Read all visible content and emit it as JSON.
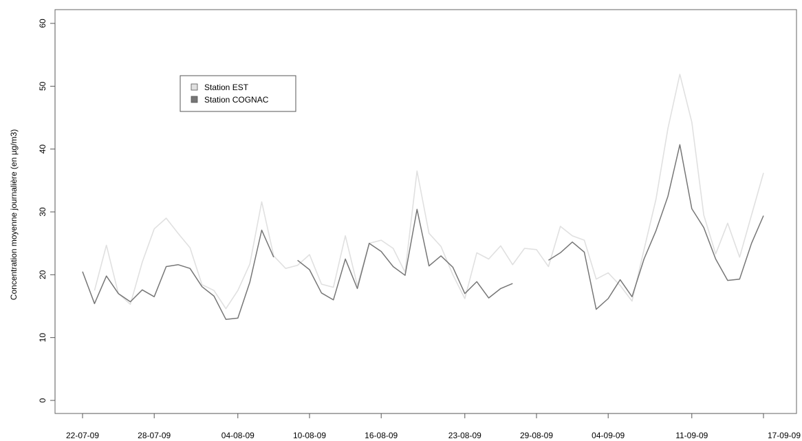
{
  "chart_data": {
    "type": "line",
    "ylabel": "Concentration moyenne journalière (en µg/m3)",
    "ylim": [
      0,
      60
    ],
    "y_ticks": [
      0,
      10,
      20,
      30,
      40,
      50,
      60
    ],
    "x_ticks": [
      "22-07-09",
      "28-07-09",
      "04-08-09",
      "10-08-09",
      "16-08-09",
      "23-08-09",
      "29-08-09",
      "04-09-09",
      "11-09-09",
      "17-09-09"
    ],
    "x": [
      "22-07-09",
      "23-07-09",
      "24-07-09",
      "25-07-09",
      "26-07-09",
      "27-07-09",
      "28-07-09",
      "29-07-09",
      "30-07-09",
      "31-07-09",
      "01-08-09",
      "02-08-09",
      "03-08-09",
      "04-08-09",
      "05-08-09",
      "06-08-09",
      "07-08-09",
      "08-08-09",
      "09-08-09",
      "10-08-09",
      "11-08-09",
      "12-08-09",
      "13-08-09",
      "14-08-09",
      "15-08-09",
      "16-08-09",
      "17-08-09",
      "18-08-09",
      "19-08-09",
      "20-08-09",
      "21-08-09",
      "22-08-09",
      "23-08-09",
      "24-08-09",
      "25-08-09",
      "26-08-09",
      "27-08-09",
      "28-08-09",
      "29-08-09",
      "30-08-09",
      "31-08-09",
      "01-09-09",
      "02-09-09",
      "03-09-09",
      "04-09-09",
      "05-09-09",
      "06-09-09",
      "07-09-09",
      "08-09-09",
      "09-09-09",
      "10-09-09",
      "11-09-09",
      "12-09-09",
      "13-09-09",
      "14-09-09",
      "15-09-09",
      "16-09-09",
      "17-09-09"
    ],
    "legend_position": "top-left",
    "series": [
      {
        "name": "Station EST",
        "color": "#e0e0e0",
        "values": [
          null,
          17.5,
          24.7,
          17.0,
          15.3,
          22.0,
          27.3,
          29.0,
          26.6,
          24.3,
          18.4,
          17.5,
          14.6,
          17.5,
          21.7,
          31.6,
          23.0,
          21.0,
          21.5,
          23.2,
          18.5,
          18.0,
          26.2,
          18.3,
          25.0,
          25.5,
          24.2,
          20.4,
          36.5,
          26.6,
          24.5,
          20.0,
          16.2,
          23.5,
          22.5,
          24.6,
          21.6,
          24.2,
          24.0,
          21.3,
          27.7,
          26.2,
          25.5,
          19.3,
          20.3,
          18.3,
          15.8,
          24.0,
          32.0,
          43.3,
          51.9,
          44.3,
          29.5,
          23.3,
          28.2,
          22.8,
          29.5,
          36.2
        ]
      },
      {
        "name": "Station COGNAC",
        "color": "#767676",
        "values": [
          20.5,
          15.4,
          19.8,
          17.0,
          15.7,
          17.6,
          16.5,
          21.3,
          21.6,
          21.0,
          18.1,
          16.6,
          12.9,
          13.1,
          18.8,
          27.1,
          22.8,
          null,
          22.3,
          20.8,
          17.1,
          16.0,
          22.5,
          17.8,
          25.0,
          23.7,
          21.3,
          19.9,
          30.4,
          21.4,
          23.0,
          21.2,
          17.0,
          18.9,
          16.3,
          17.8,
          18.6,
          null,
          null,
          22.3,
          23.5,
          25.2,
          23.6,
          14.5,
          16.2,
          19.2,
          16.5,
          22.5,
          27.0,
          32.5,
          40.7,
          30.5,
          27.5,
          22.5,
          19.1,
          19.3,
          25.0,
          29.4
        ]
      }
    ],
    "grid": false
  }
}
